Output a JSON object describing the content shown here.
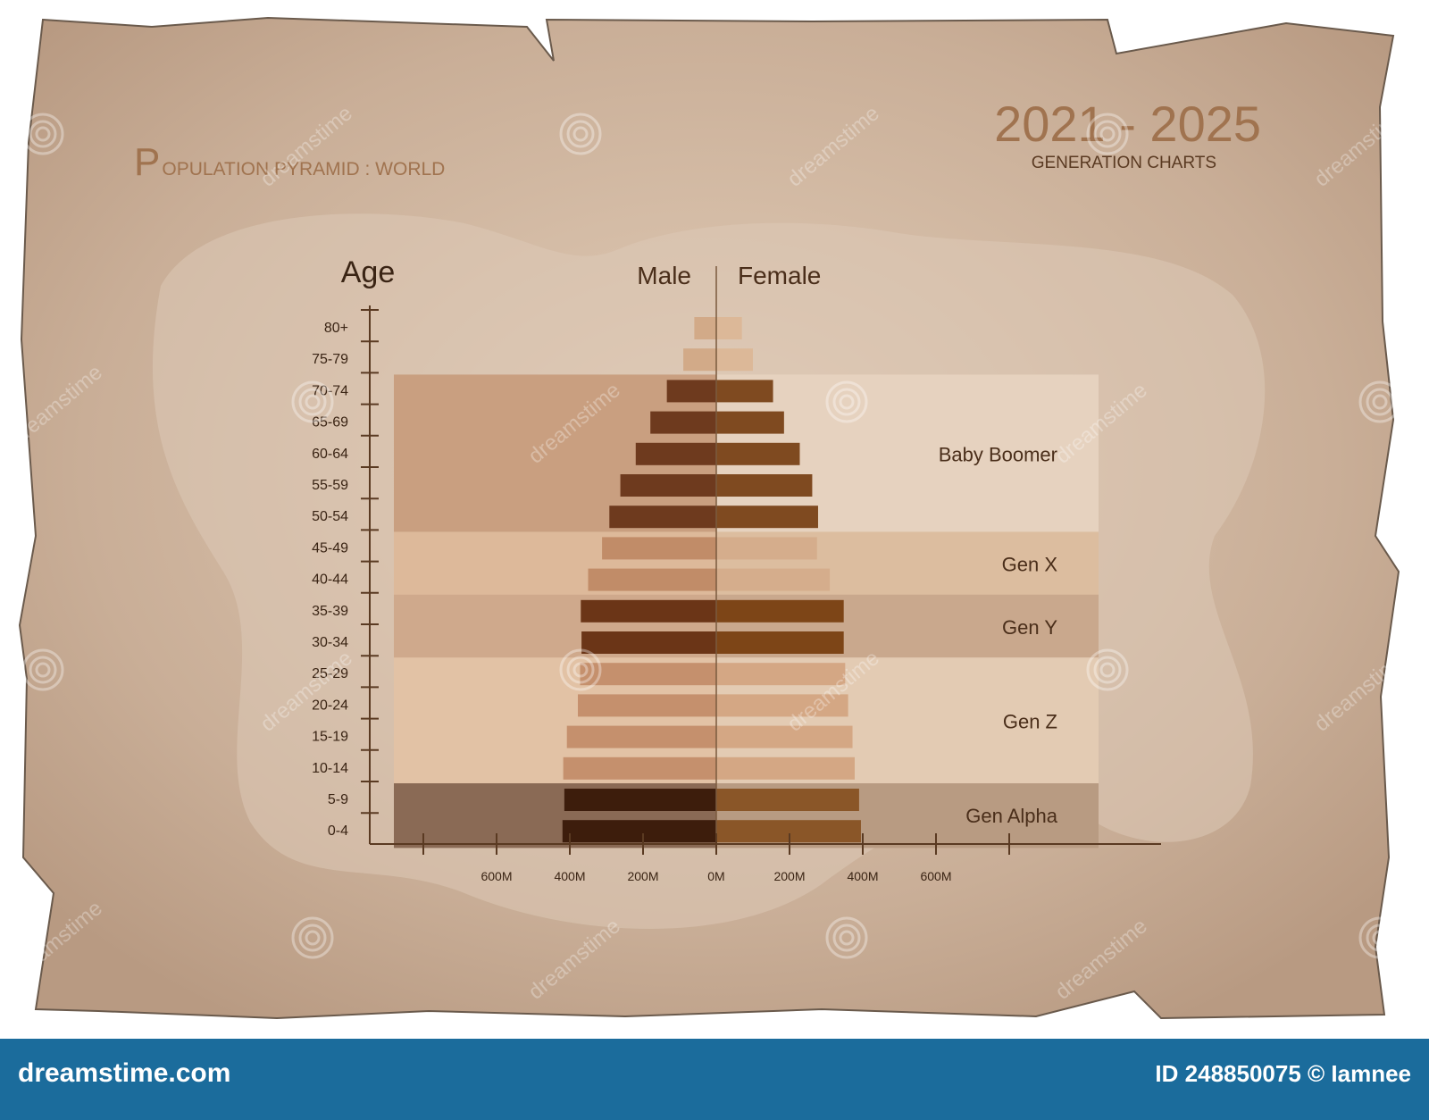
{
  "header": {
    "title_initial": "P",
    "title_rest": "OPULATION PYRAMID : WORLD",
    "year_range": "2021 - 2025",
    "subtitle": "GENERATION CHARTS"
  },
  "footer": {
    "site": "dreamstime.com",
    "image_id": "ID 248850075 © Iamnee"
  },
  "watermark": "dreamstime",
  "colors": {
    "paper": "#c8ad96",
    "title_brown": "#a0734f",
    "axis": "#5a3a22",
    "male_dark": "#6b3a1e",
    "female_dark": "#7d4c22"
  },
  "chart_data": {
    "type": "bar",
    "orientation": "horizontal-pyramid",
    "y_axis_label": "Age",
    "left_label": "Male",
    "right_label": "Female",
    "categories": [
      "80+",
      "75-79",
      "70-74",
      "65-69",
      "60-64",
      "55-59",
      "50-54",
      "45-49",
      "40-44",
      "35-39",
      "30-34",
      "25-29",
      "20-24",
      "15-19",
      "10-14",
      "5-9",
      "0-4"
    ],
    "series": [
      {
        "name": "Male",
        "values": [
          60,
          90,
          135,
          180,
          220,
          262,
          292,
          312,
          350,
          370,
          368,
          372,
          378,
          408,
          418,
          415,
          420
        ]
      },
      {
        "name": "Female",
        "values": [
          70,
          100,
          155,
          185,
          228,
          262,
          278,
          275,
          310,
          348,
          348,
          352,
          360,
          372,
          378,
          390,
          395
        ]
      }
    ],
    "x_tick_labels": [
      "600M",
      "400M",
      "200M",
      "0M",
      "200M",
      "400M",
      "600M"
    ],
    "x_range": [
      -800,
      800
    ],
    "generations": [
      {
        "label": "Baby Boomer",
        "from": "70-74",
        "to": "50-54"
      },
      {
        "label": "Gen X",
        "from": "45-49",
        "to": "40-44"
      },
      {
        "label": "Gen Y",
        "from": "35-39",
        "to": "30-34"
      },
      {
        "label": "Gen Z",
        "from": "25-29",
        "to": "10-14"
      },
      {
        "label": "Gen Alpha",
        "from": "5-9",
        "to": "0-4"
      }
    ]
  }
}
